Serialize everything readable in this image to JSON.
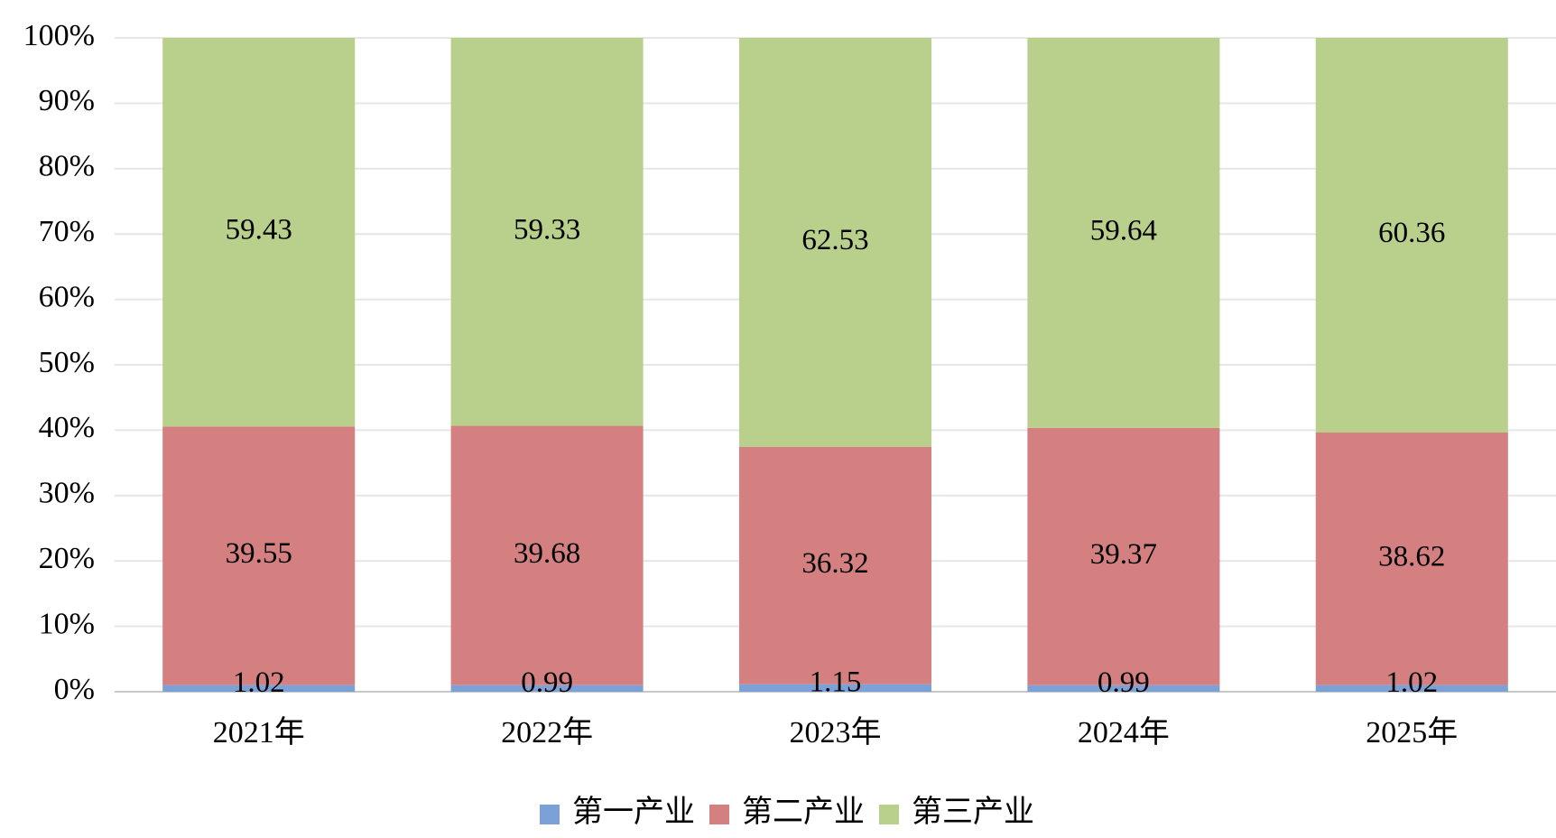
{
  "chart_data": {
    "type": "stacked_bar",
    "categories": [
      "2021年",
      "2022年",
      "2023年",
      "2024年",
      "2025年"
    ],
    "series": [
      {
        "name": "第一产业",
        "color": "#7ba1d6",
        "values": [
          1.02,
          0.99,
          1.15,
          0.99,
          1.02
        ]
      },
      {
        "name": "第二产业",
        "color": "#d48080",
        "values": [
          39.55,
          39.68,
          36.32,
          39.37,
          38.62
        ]
      },
      {
        "name": "第三产业",
        "color": "#b8d08b",
        "values": [
          59.43,
          59.33,
          62.53,
          59.64,
          60.36
        ]
      }
    ],
    "ylim": [
      0,
      100
    ],
    "yticks": [
      {
        "value": 0,
        "label": "0%"
      },
      {
        "value": 10,
        "label": "10%"
      },
      {
        "value": 20,
        "label": "20%"
      },
      {
        "value": 30,
        "label": "30%"
      },
      {
        "value": 40,
        "label": "40%"
      },
      {
        "value": 50,
        "label": "50%"
      },
      {
        "value": 60,
        "label": "60%"
      },
      {
        "value": 70,
        "label": "70%"
      },
      {
        "value": 80,
        "label": "80%"
      },
      {
        "value": 90,
        "label": "90%"
      },
      {
        "value": 100,
        "label": "100%"
      }
    ],
    "grid": true,
    "legend": "bottom"
  }
}
